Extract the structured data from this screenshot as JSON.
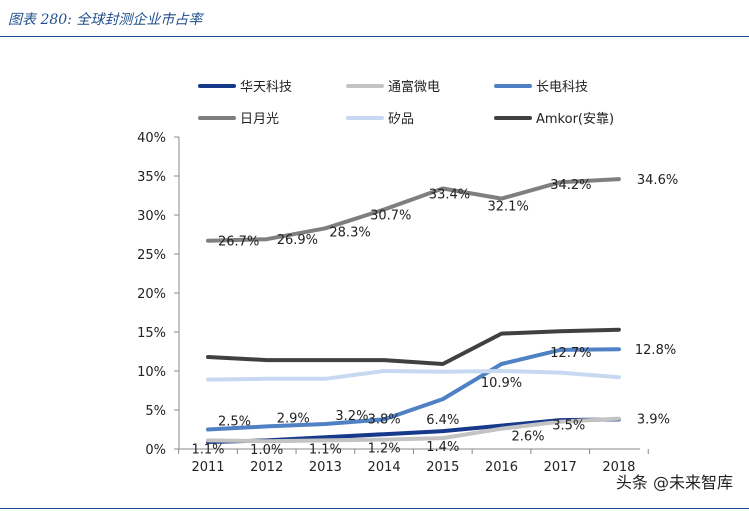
{
  "header": {
    "title": "图表 280:  全球封测企业市占率"
  },
  "watermark": "头条 @未来智库",
  "chart_data": {
    "type": "line",
    "x": [
      "2011",
      "2012",
      "2013",
      "2014",
      "2015",
      "2016",
      "2017",
      "2018"
    ],
    "ylim": [
      0,
      40
    ],
    "yticks": [
      "0%",
      "5%",
      "10%",
      "15%",
      "20%",
      "25%",
      "30%",
      "35%",
      "40%"
    ],
    "grid": false,
    "legend_position": "top",
    "series": [
      {
        "name": "华天科技",
        "color": "#17398a",
        "values": [
          0.9,
          1.1,
          1.5,
          1.9,
          2.3,
          3.0,
          3.7,
          3.8
        ],
        "labels": []
      },
      {
        "name": "通富微电",
        "color": "#c3c3c3",
        "values": [
          1.1,
          1.0,
          1.1,
          1.2,
          1.4,
          2.6,
          3.5,
          3.9
        ],
        "labels": [
          "1.1%",
          "1.0%",
          "1.1%",
          "1.2%",
          "1.4%",
          "2.6%",
          "3.5%",
          "3.9%"
        ]
      },
      {
        "name": "长电科技",
        "color": "#4f81c4",
        "values": [
          2.5,
          2.9,
          3.2,
          3.8,
          6.4,
          10.9,
          12.7,
          12.8
        ],
        "labels": [
          "2.5%",
          "2.9%",
          "3.2%",
          "3.8%",
          "6.4%",
          "10.9%",
          "12.7%",
          "12.8%"
        ]
      },
      {
        "name": "日月光",
        "color": "#7f7f7f",
        "values": [
          26.7,
          26.9,
          28.3,
          30.7,
          33.4,
          32.1,
          34.2,
          34.6
        ],
        "labels": [
          "26.7%",
          "26.9%",
          "28.3%",
          "30.7%",
          "33.4%",
          "32.1%",
          "34.2%",
          "34.6%"
        ]
      },
      {
        "name": "矽品",
        "color": "#c6d9f0",
        "values": [
          8.9,
          9.0,
          9.0,
          10.0,
          9.9,
          10.0,
          9.8,
          9.2
        ],
        "labels": []
      },
      {
        "name": "Amkor(安靠)",
        "color": "#404040",
        "values": [
          11.8,
          11.4,
          11.4,
          11.4,
          10.9,
          14.8,
          15.1,
          15.3
        ],
        "labels": []
      }
    ]
  }
}
